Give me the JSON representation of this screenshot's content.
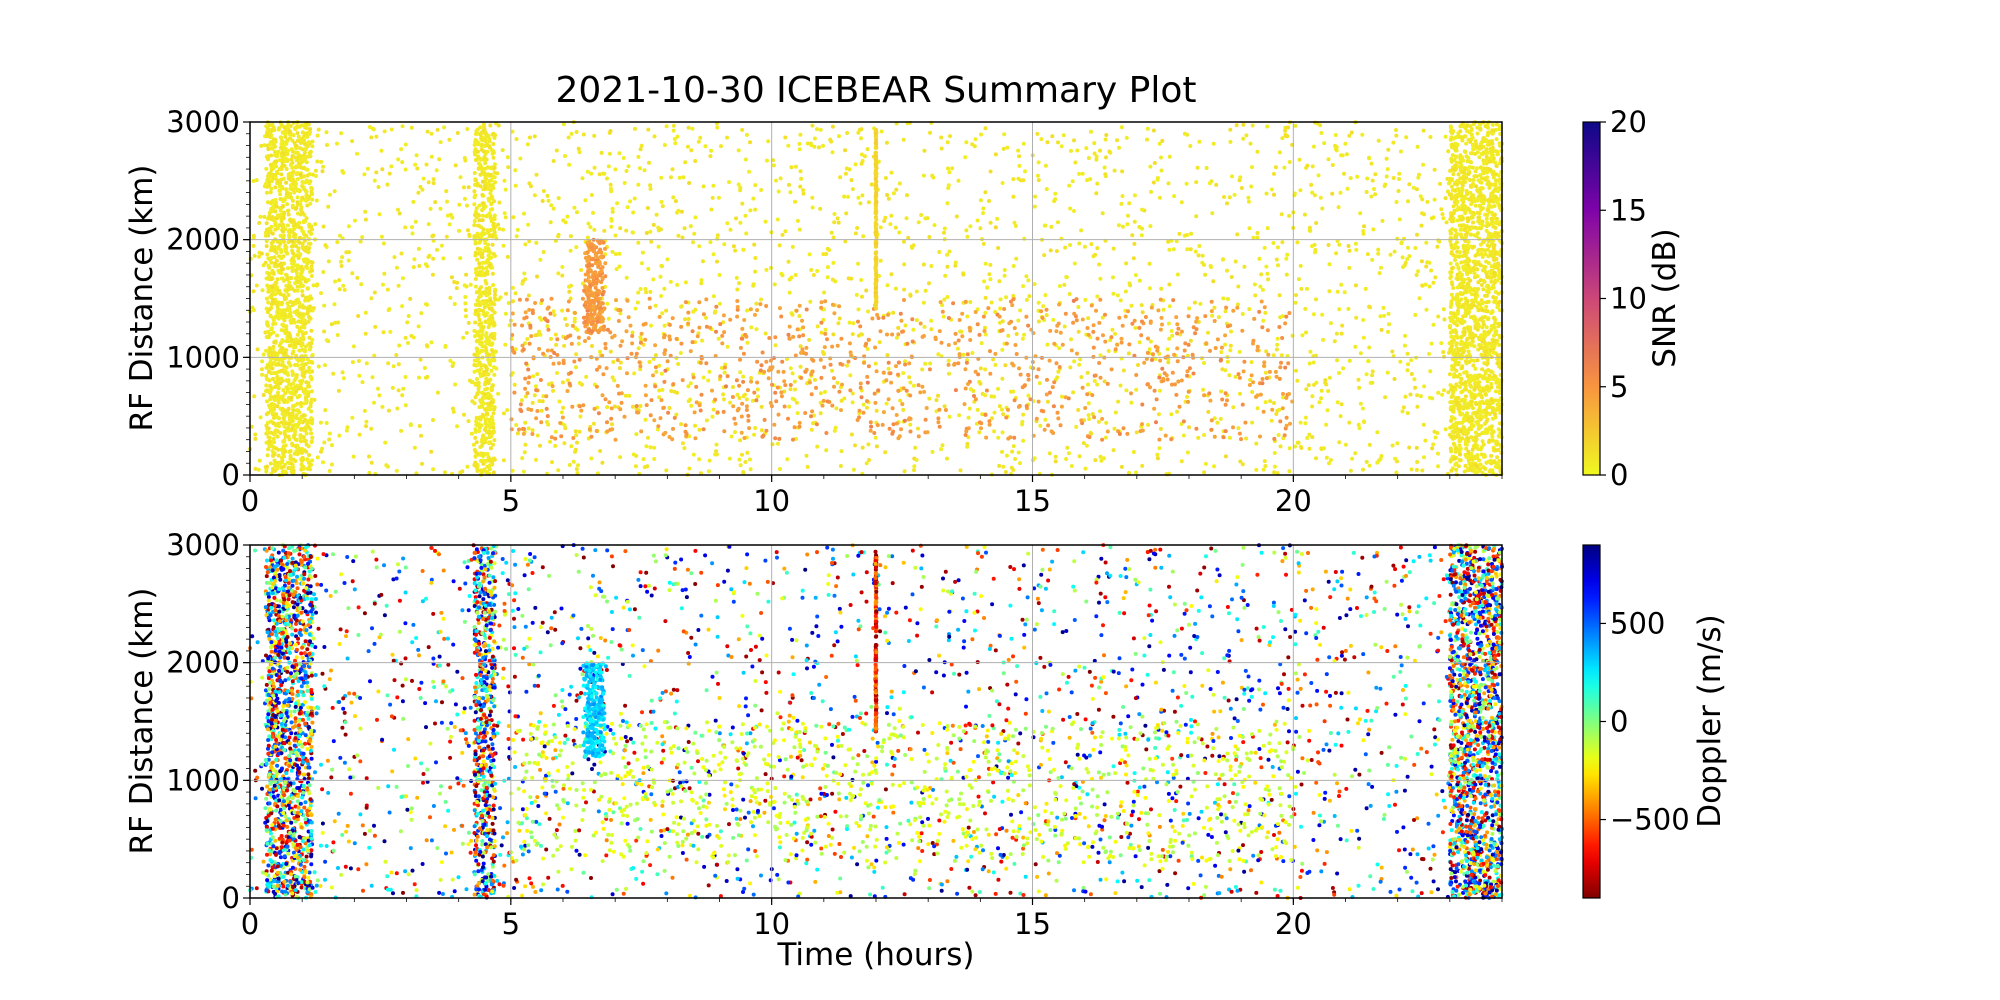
{
  "chart_data": [
    {
      "type": "scatter",
      "title": "2021-10-30 ICEBEAR Summary Plot",
      "xlabel": "",
      "ylabel": "RF Distance (km)",
      "xlim": [
        0,
        24
      ],
      "ylim": [
        0,
        3000
      ],
      "xticks": [
        "0",
        "5",
        "10",
        "15",
        "20"
      ],
      "yticks": [
        "0",
        "1000",
        "2000",
        "3000"
      ],
      "grid": true,
      "color_variable": "SNR",
      "colorbar": {
        "label": "SNR (dB)",
        "range": [
          0,
          20
        ],
        "ticks": [
          "0",
          "5",
          "10",
          "15",
          "20"
        ],
        "colormap": "plasma_r"
      },
      "features": [
        {
          "kind": "background_scatter",
          "x_range": [
            0,
            24
          ],
          "y_range": [
            0,
            3000
          ],
          "typical_value": 0.5
        },
        {
          "kind": "dense_band",
          "x_range": [
            0.3,
            1.2
          ],
          "y_range": [
            0,
            3000
          ],
          "typical_value": 0.5
        },
        {
          "kind": "dense_band",
          "x_range": [
            4.3,
            4.7
          ],
          "y_range": [
            0,
            3000
          ],
          "typical_value": 0.5
        },
        {
          "kind": "dense_band",
          "x_range": [
            23.0,
            24.0
          ],
          "y_range": [
            0,
            3000
          ],
          "typical_value": 0.5
        },
        {
          "kind": "mid_range_scatter",
          "x_range": [
            5,
            20
          ],
          "y_range": [
            300,
            1500
          ],
          "typical_value": 4
        },
        {
          "kind": "cluster",
          "x_range": [
            6.3,
            6.9
          ],
          "y_range": [
            1200,
            2000
          ],
          "typical_value": 4
        },
        {
          "kind": "vertical_streak",
          "x": 12.0,
          "y_range": [
            1400,
            2950
          ],
          "typical_value": 1.5
        }
      ]
    },
    {
      "type": "scatter",
      "title": "",
      "xlabel": "Time (hours)",
      "ylabel": "RF Distance (km)",
      "xlim": [
        0,
        24
      ],
      "ylim": [
        0,
        3000
      ],
      "xticks": [
        "0",
        "5",
        "10",
        "15",
        "20"
      ],
      "yticks": [
        "0",
        "1000",
        "2000",
        "3000"
      ],
      "grid": true,
      "color_variable": "Doppler",
      "colorbar": {
        "label": "Doppler (m/s)",
        "range": [
          -900,
          900
        ],
        "ticks": [
          "−500",
          "0",
          "500"
        ],
        "tick_values": [
          -500,
          0,
          500
        ],
        "colormap": "jet_r"
      },
      "features": [
        {
          "kind": "background_scatter",
          "x_range": [
            0,
            24
          ],
          "y_range": [
            0,
            3000
          ],
          "value_range": [
            -900,
            900
          ]
        },
        {
          "kind": "dense_band",
          "x_range": [
            0.3,
            1.2
          ],
          "y_range": [
            0,
            3000
          ],
          "value_range": [
            -900,
            900
          ]
        },
        {
          "kind": "dense_band",
          "x_range": [
            4.3,
            4.7
          ],
          "y_range": [
            0,
            3000
          ],
          "value_range": [
            -900,
            900
          ]
        },
        {
          "kind": "dense_band",
          "x_range": [
            23.0,
            24.0
          ],
          "y_range": [
            0,
            3000
          ],
          "value_range": [
            -900,
            900
          ]
        },
        {
          "kind": "mid_range_scatter",
          "x_range": [
            5,
            20
          ],
          "y_range": [
            300,
            1500
          ],
          "typical_value": -150
        },
        {
          "kind": "cluster",
          "x_range": [
            6.3,
            6.9
          ],
          "y_range": [
            1200,
            2000
          ],
          "typical_value": 300
        },
        {
          "kind": "vertical_streak",
          "x": 12.0,
          "y_range": [
            1400,
            2950
          ],
          "value_range": [
            -900,
            -350
          ]
        }
      ]
    }
  ]
}
